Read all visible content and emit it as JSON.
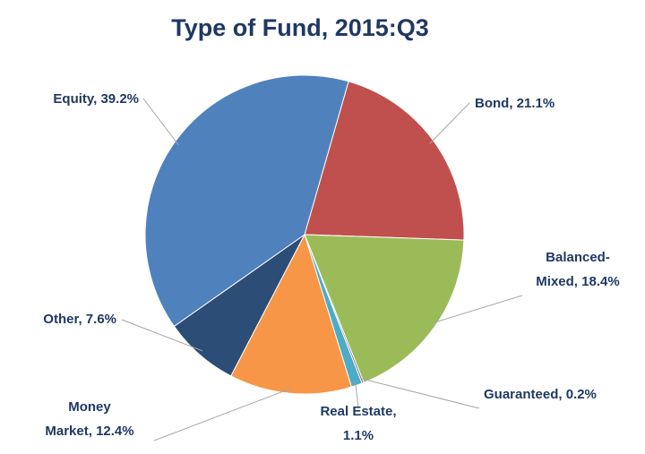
{
  "chart_data": {
    "type": "pie",
    "title": "Type of Fund, 2015:Q3",
    "categories": [
      "Bond, 21.1%",
      "Balanced-\nMixed, 18.4%",
      "Guaranteed, 0.2%",
      "Real Estate,\n1.1%",
      "Money\nMarket, 12.4%",
      "Other, 7.6%",
      "Equity, 39.2%"
    ],
    "values": [
      21.1,
      18.4,
      0.2,
      1.1,
      12.4,
      7.6,
      39.2
    ],
    "colors": [
      "#c0504d",
      "#9bbb59",
      "#8064a2",
      "#4bacc6",
      "#f79646",
      "#2c4d75",
      "#4f81bd"
    ]
  }
}
